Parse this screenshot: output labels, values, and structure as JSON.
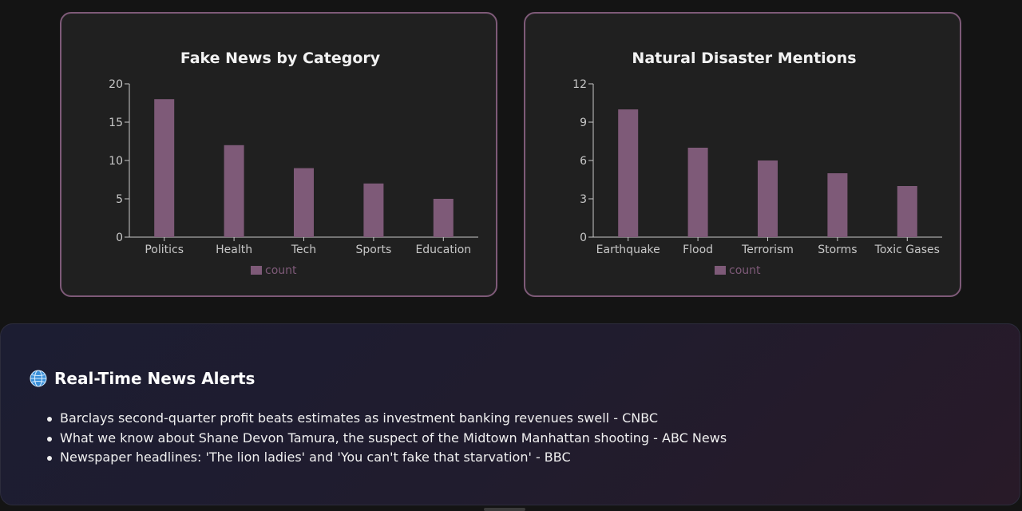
{
  "charts": [
    {
      "id": "fake-news",
      "chart_data": {
        "type": "bar",
        "title": "Fake News by Category",
        "categories": [
          "Politics",
          "Health",
          "Tech",
          "Sports",
          "Education"
        ],
        "series": [
          {
            "name": "count",
            "values": [
              18,
              12,
              9,
              7,
              5
            ]
          }
        ],
        "ylim": [
          0,
          20
        ],
        "yticks": [
          0,
          5,
          10,
          15,
          20
        ],
        "legend": "bottom",
        "grid": false,
        "color": "#7e5a78"
      }
    },
    {
      "id": "natural-disaster",
      "chart_data": {
        "type": "bar",
        "title": "Natural Disaster Mentions",
        "categories": [
          "Earthquake",
          "Flood",
          "Terrorism",
          "Storms",
          "Toxic Gases"
        ],
        "series": [
          {
            "name": "count",
            "values": [
              10,
              7,
              6,
              5,
              4
            ]
          }
        ],
        "ylim": [
          0,
          12
        ],
        "yticks": [
          0,
          3,
          6,
          9,
          12
        ],
        "legend": "bottom",
        "grid": false,
        "color": "#7e5a78"
      }
    }
  ],
  "alerts": {
    "icon": "globe-icon",
    "title": "Real-Time News Alerts",
    "items": [
      "Barclays second-quarter profit beats estimates as investment banking revenues swell - CNBC",
      "What we know about Shane Devon Tamura, the suspect of the Midtown Manhattan shooting - ABC News",
      "Newspaper headlines: 'The lion ladies' and 'You can't fake that starvation' - BBC"
    ]
  }
}
